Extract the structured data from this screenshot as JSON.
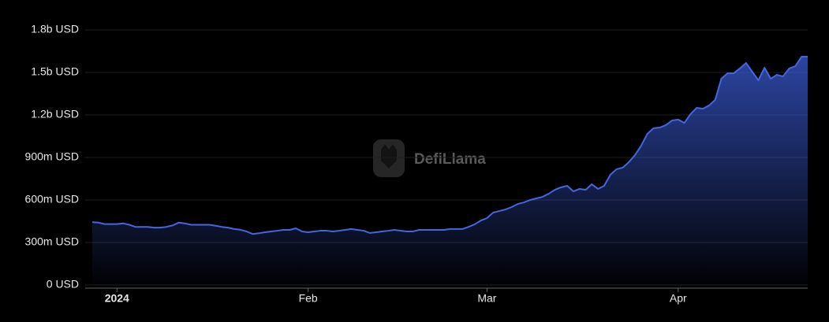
{
  "chart_data": {
    "type": "area",
    "watermark": "DefiLlama",
    "categories": [
      null,
      null,
      null,
      null,
      "2024",
      null,
      null,
      null,
      null,
      null,
      null,
      null,
      null,
      null,
      null,
      null,
      null,
      null,
      null,
      null,
      null,
      null,
      null,
      null,
      null,
      null,
      null,
      null,
      null,
      null,
      null,
      null,
      null,
      null,
      null,
      "Feb",
      null,
      null,
      null,
      null,
      null,
      null,
      null,
      null,
      null,
      null,
      null,
      null,
      null,
      null,
      null,
      null,
      null,
      null,
      null,
      null,
      null,
      null,
      null,
      null,
      null,
      null,
      null,
      null,
      "Mar",
      null,
      null,
      null,
      null,
      null,
      null,
      null,
      null,
      null,
      null,
      null,
      null,
      null,
      null,
      null,
      null,
      null,
      null,
      null,
      null,
      null,
      null,
      null,
      null,
      null,
      null,
      null,
      null,
      null,
      null,
      "Apr",
      null,
      null,
      null,
      null,
      null,
      null,
      null,
      null,
      null,
      null,
      null,
      null,
      null,
      null,
      null,
      null,
      null,
      null,
      null,
      null,
      null
    ],
    "series": [
      {
        "color": "#4467e0",
        "values": [
          444,
          440,
          430,
          430,
          430,
          435,
          425,
          410,
          410,
          410,
          405,
          405,
          410,
          420,
          440,
          435,
          425,
          425,
          425,
          425,
          418,
          410,
          405,
          395,
          390,
          378,
          360,
          365,
          372,
          378,
          383,
          389,
          389,
          400,
          378,
          372,
          378,
          383,
          383,
          378,
          383,
          389,
          395,
          389,
          383,
          367,
          372,
          378,
          383,
          389,
          383,
          378,
          378,
          389,
          389,
          389,
          389,
          389,
          395,
          395,
          395,
          410,
          428,
          455,
          472,
          511,
          522,
          533,
          550,
          572,
          583,
          600,
          611,
          622,
          644,
          672,
          689,
          700,
          661,
          678,
          672,
          711,
          678,
          700,
          778,
          817,
          828,
          867,
          917,
          983,
          1067,
          1106,
          1111,
          1128,
          1161,
          1167,
          1144,
          1206,
          1250,
          1244,
          1267,
          1306,
          1456,
          1494,
          1494,
          1528,
          1567,
          1506,
          1444,
          1533,
          1456,
          1483,
          1472,
          1528,
          1544,
          1611,
          1611
        ]
      }
    ],
    "ylim": [
      0,
      1800
    ],
    "yticks": [
      {
        "value": 0,
        "label": "0 USD"
      },
      {
        "value": 300,
        "label": "300m USD"
      },
      {
        "value": 600,
        "label": "600m USD"
      },
      {
        "value": 900,
        "label": "900m USD"
      },
      {
        "value": 1200,
        "label": "1.2b USD"
      },
      {
        "value": 1500,
        "label": "1.5b USD"
      },
      {
        "value": 1800,
        "label": "1.8b USD"
      }
    ],
    "grid": true
  }
}
